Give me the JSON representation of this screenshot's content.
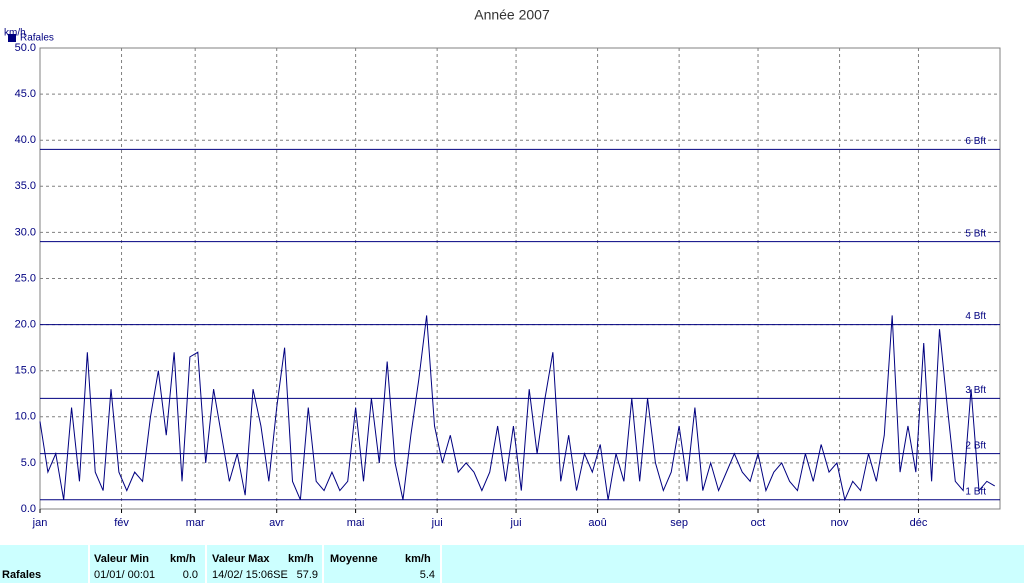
{
  "chart_data": {
    "type": "line",
    "title": "Année 2007",
    "y_label": "km/h",
    "xlim": [
      0,
      365
    ],
    "xticks": [
      {
        "value": 0,
        "label": "jan"
      },
      {
        "value": 31,
        "label": "fév"
      },
      {
        "value": 59,
        "label": "mar"
      },
      {
        "value": 90,
        "label": "avr"
      },
      {
        "value": 120,
        "label": "mai"
      },
      {
        "value": 151,
        "label": "jui"
      },
      {
        "value": 181,
        "label": "jui"
      },
      {
        "value": 212,
        "label": "aoû"
      },
      {
        "value": 243,
        "label": "sep"
      },
      {
        "value": 273,
        "label": "oct"
      },
      {
        "value": 304,
        "label": "nov"
      },
      {
        "value": 334,
        "label": "déc"
      }
    ],
    "ylim": [
      0,
      50
    ],
    "yticks": [
      {
        "value": 0,
        "label": "0.0"
      },
      {
        "value": 5,
        "label": "5.0"
      },
      {
        "value": 10,
        "label": "10.0"
      },
      {
        "value": 15,
        "label": "15.0"
      },
      {
        "value": 20,
        "label": "20.0"
      },
      {
        "value": 25,
        "label": "25.0"
      },
      {
        "value": 30,
        "label": "30.0"
      },
      {
        "value": 35,
        "label": "35.0"
      },
      {
        "value": 40,
        "label": "40.0"
      },
      {
        "value": 45,
        "label": "45.0"
      },
      {
        "value": 50,
        "label": "50.0"
      }
    ],
    "grid": true,
    "reference_lines": [
      {
        "value": 1,
        "label": "1 Bft"
      },
      {
        "value": 6,
        "label": "2 Bft"
      },
      {
        "value": 12,
        "label": "3 Bft"
      },
      {
        "value": 20,
        "label": "4 Bft"
      },
      {
        "value": 29,
        "label": "5 Bft"
      },
      {
        "value": 39,
        "label": "6 Bft"
      }
    ],
    "x": [
      0,
      3,
      6,
      9,
      12,
      15,
      18,
      21,
      24,
      27,
      30,
      33,
      36,
      39,
      42,
      45,
      48,
      51,
      54,
      57,
      60,
      63,
      66,
      69,
      72,
      75,
      78,
      81,
      84,
      87,
      90,
      93,
      96,
      99,
      102,
      105,
      108,
      111,
      114,
      117,
      120,
      123,
      126,
      129,
      132,
      135,
      138,
      141,
      144,
      147,
      150,
      153,
      156,
      159,
      162,
      165,
      168,
      171,
      174,
      177,
      180,
      183,
      186,
      189,
      192,
      195,
      198,
      201,
      204,
      207,
      210,
      213,
      216,
      219,
      222,
      225,
      228,
      231,
      234,
      237,
      240,
      243,
      246,
      249,
      252,
      255,
      258,
      261,
      264,
      267,
      270,
      273,
      276,
      279,
      282,
      285,
      288,
      291,
      294,
      297,
      300,
      303,
      306,
      309,
      312,
      315,
      318,
      321,
      324,
      327,
      330,
      333,
      336,
      339,
      342,
      345,
      348,
      351,
      354,
      357,
      360,
      363
    ],
    "series": [
      {
        "name": "Rafales",
        "color": "#000080",
        "values": [
          9.5,
          4,
          6,
          1,
          11,
          3,
          17,
          4,
          2,
          13,
          4,
          2,
          4,
          3,
          10,
          15,
          8,
          17,
          3,
          16.5,
          17,
          5,
          13,
          8,
          3,
          6,
          1.5,
          13,
          9,
          3,
          11,
          17.5,
          3,
          1,
          11,
          3,
          2,
          4,
          2,
          3,
          11,
          3,
          12,
          5,
          16,
          5,
          1,
          8,
          14,
          21,
          9,
          5,
          8,
          4,
          5,
          4,
          2,
          4,
          9,
          3,
          9,
          2,
          13,
          6,
          12,
          17,
          3,
          8,
          2,
          6,
          4,
          7,
          1,
          6,
          3,
          12,
          3,
          12,
          5,
          2,
          4,
          9,
          3,
          11,
          2,
          5,
          2,
          4,
          6,
          4,
          3,
          6,
          2,
          4,
          5,
          3,
          2,
          6,
          3,
          7,
          4,
          5,
          1,
          3,
          2,
          6,
          3,
          8,
          21,
          4,
          9,
          4,
          18,
          3,
          19.5,
          11,
          3,
          2,
          13,
          2,
          3,
          2.5
        ]
      }
    ],
    "legend": "top-left"
  },
  "footer": {
    "series": "Rafales",
    "min": {
      "label": "Valeur Min",
      "unit": "km/h",
      "date": "01/01/ 00:01",
      "value": "0.0"
    },
    "max": {
      "label": "Valeur Max",
      "unit": "km/h",
      "date": "14/02/ 15:06SE",
      "value": "57.9"
    },
    "mean": {
      "label": "Moyenne",
      "unit": "km/h",
      "value": "5.4"
    }
  }
}
